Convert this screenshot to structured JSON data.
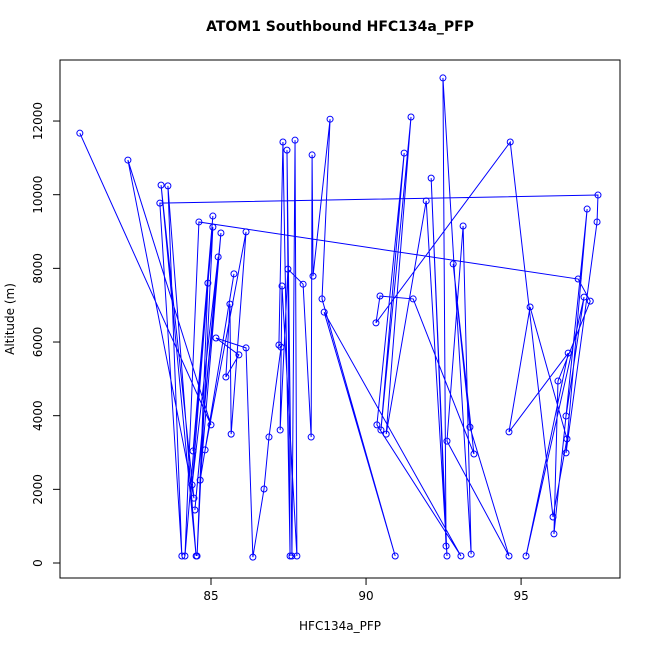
{
  "chart_data": {
    "type": "line",
    "title": "ATOM1 Southbound HFC134a_PFP",
    "xlabel": "HFC134a_PFP",
    "ylabel": "Altitude (m)",
    "color": "#0000ff",
    "grid": false,
    "xlim": [
      80.13,
      98.19
    ],
    "ylim": [
      -407,
      13657
    ],
    "xticks": [
      85,
      90,
      95
    ],
    "yticks": [
      0,
      2000,
      4000,
      6000,
      8000,
      10000,
      12000
    ],
    "x": [
      80.77,
      85.0,
      82.32,
      84.45,
      83.39,
      84.52,
      83.61,
      84.06,
      83.35,
      97.48,
      97.45,
      96.45,
      97.13,
      96.06,
      96.19,
      97.23,
      96.84,
      84.61,
      84.16,
      85.06,
      84.42,
      85.06,
      84.55,
      84.9,
      84.39,
      85.23,
      84.48,
      85.32,
      84.65,
      85.74,
      84.81,
      86.13,
      85.65,
      85.61,
      85.48,
      85.9,
      85.16,
      86.13,
      86.35,
      86.71,
      86.87,
      87.26,
      87.19,
      87.32,
      87.55,
      87.45,
      87.61,
      87.71,
      87.77,
      87.29,
      87.23,
      87.48,
      87.97,
      88.23,
      88.26,
      88.29,
      88.84,
      88.58,
      90.94,
      88.65,
      93.06,
      90.35,
      91.23,
      90.48,
      91.45,
      90.65,
      91.94,
      92.61,
      92.1,
      92.58,
      92.48,
      93.39,
      93.13,
      92.61,
      94.61,
      93.35,
      92.81,
      93.48,
      91.52,
      90.45,
      90.32,
      94.65,
      96.03,
      96.48,
      95.29,
      94.61,
      96.52,
      95.16,
      97.03,
      96.45
    ],
    "values": [
      11670,
      3750,
      10940,
      1760,
      10260,
      190,
      10240,
      190,
      9770,
      9990,
      9260,
      2990,
      9610,
      790,
      4940,
      7110,
      7710,
      9260,
      190,
      9420,
      3040,
      9120,
      190,
      7600,
      2120,
      8310,
      1440,
      8960,
      2250,
      7850,
      3070,
      8990,
      3500,
      7030,
      5050,
      5650,
      6110,
      5840,
      160,
      2010,
      3420,
      5860,
      5920,
      11430,
      190,
      11210,
      190,
      11480,
      190,
      7520,
      3610,
      7980,
      7570,
      3420,
      11080,
      7790,
      12050,
      7170,
      190,
      6810,
      190,
      3750,
      11130,
      3610,
      12110,
      3500,
      9830,
      190,
      10450,
      460,
      13170,
      240,
      9150,
      3310,
      190,
      3690,
      8120,
      2960,
      7170,
      7250,
      6520,
      11430,
      1250,
      3370,
      6950,
      3560,
      5700,
      190,
      7220,
      3990
    ]
  }
}
